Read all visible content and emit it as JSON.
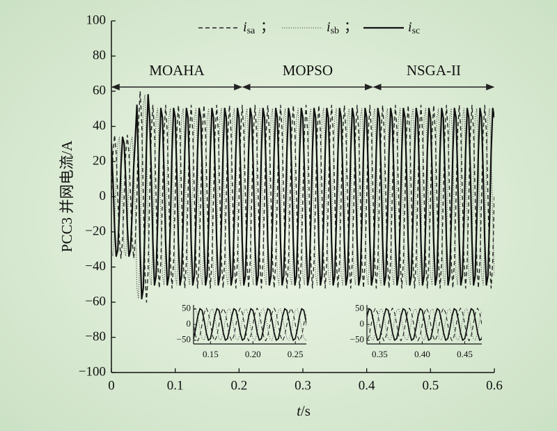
{
  "chart_data": [
    {
      "type": "line",
      "xlabel": "t/s",
      "ylabel": "PCC3 并网电流/A",
      "xlim": [
        0,
        0.6
      ],
      "xticks": [
        0,
        0.1,
        0.2,
        0.3,
        0.4,
        0.5,
        0.6
      ],
      "ylim": [
        -100,
        100
      ],
      "yticks": [
        {
          "value": -100,
          "label": "−100"
        },
        {
          "value": -80,
          "label": "−80"
        },
        {
          "value": -60,
          "label": "−60"
        },
        {
          "value": -40,
          "label": "−40"
        },
        {
          "value": -20,
          "label": "−20"
        },
        0,
        20,
        40,
        60,
        80,
        100
      ],
      "legend_separator": "；",
      "annotations": [
        {
          "label": "MOAHA",
          "start": 0,
          "end": 0.205
        },
        {
          "label": "MOPSO",
          "start": 0.205,
          "end": 0.41
        },
        {
          "label": "NSGA-II",
          "start": 0.41,
          "end": 0.6
        }
      ],
      "x": [
        0,
        0.0025,
        0.005,
        0.0075,
        0.01,
        0.0125,
        0.015,
        0.0175,
        0.02,
        0.0225,
        0.025,
        0.0275,
        0.03,
        0.0325,
        0.035,
        0.0375,
        0.04,
        0.0425,
        0.045,
        0.0475,
        0.05,
        0.0525,
        0.055,
        0.0575,
        0.06,
        0.0625,
        0.065,
        0.0675,
        0.07,
        0.0725,
        0.075,
        0.0775,
        0.08,
        0.0825,
        0.085,
        0.0875,
        0.09,
        0.0925,
        0.095,
        0.0975,
        0.1,
        0.1025,
        0.105,
        0.1075,
        0.11,
        0.1125,
        0.115,
        0.1175,
        0.12,
        0.1225,
        0.125,
        0.1275,
        0.13,
        0.1325,
        0.135,
        0.1375,
        0.14,
        0.1425,
        0.145,
        0.1475,
        0.15,
        0.1525,
        0.155,
        0.1575,
        0.16,
        0.1625,
        0.165,
        0.1675,
        0.17,
        0.1725,
        0.175,
        0.1775,
        0.18,
        0.1825,
        0.185,
        0.1875,
        0.19,
        0.1925,
        0.195,
        0.1975,
        0.2,
        0.2025,
        0.205,
        0.2075,
        0.21,
        0.2125,
        0.215,
        0.2175,
        0.22,
        0.2225,
        0.225,
        0.2275,
        0.23,
        0.2325,
        0.235,
        0.2375,
        0.24,
        0.2425,
        0.245,
        0.2475,
        0.25,
        0.2525,
        0.255,
        0.2575,
        0.26,
        0.2625,
        0.265,
        0.2675,
        0.27,
        0.2725,
        0.275,
        0.2775,
        0.28,
        0.2825,
        0.285,
        0.2875,
        0.29,
        0.2925,
        0.295,
        0.2975,
        0.3,
        0.3025,
        0.305,
        0.3075,
        0.31,
        0.3125,
        0.315,
        0.3175,
        0.32,
        0.3225,
        0.325,
        0.3275,
        0.33,
        0.3325,
        0.335,
        0.3375,
        0.34,
        0.3425,
        0.345,
        0.3475,
        0.35,
        0.3525,
        0.355,
        0.3575,
        0.36,
        0.3625,
        0.365,
        0.3675,
        0.37,
        0.3725,
        0.375,
        0.3775,
        0.38,
        0.3825,
        0.385,
        0.3875,
        0.39,
        0.3925,
        0.395,
        0.3975,
        0.4,
        0.4025,
        0.405,
        0.4075,
        0.41,
        0.4125,
        0.415,
        0.4175,
        0.42,
        0.4225,
        0.425,
        0.4275,
        0.43,
        0.4325,
        0.435,
        0.4375,
        0.44,
        0.4425,
        0.445,
        0.4475,
        0.45,
        0.4525,
        0.455,
        0.4575,
        0.46,
        0.4625,
        0.465,
        0.4675,
        0.47,
        0.4725,
        0.475,
        0.4775,
        0.48,
        0.4825,
        0.485,
        0.4875,
        0.49,
        0.4925,
        0.495,
        0.4975,
        0.5,
        0.5025,
        0.505,
        0.5075,
        0.51,
        0.5125,
        0.515,
        0.5175,
        0.52,
        0.5225,
        0.525,
        0.5275,
        0.53,
        0.5325,
        0.535,
        0.5375,
        0.54,
        0.5425,
        0.545,
        0.5475,
        0.55,
        0.5525,
        0.555,
        0.5575,
        0.56,
        0.5625,
        0.565,
        0.5675,
        0.57,
        0.5725,
        0.575,
        0.5775,
        0.58,
        0.5825,
        0.585,
        0.5875,
        0.59,
        0.5925,
        0.595,
        0.5975,
        0.6
      ],
      "series": [
        {
          "name": "isa",
          "color": "#222222",
          "line_style": "dashed",
          "values": [
            0,
            24.7,
            35,
            24.7,
            0,
            -24.7,
            -35,
            -24.7,
            0,
            24.7,
            35,
            24.7,
            0,
            -24.7,
            -35,
            -24.7,
            0,
            42.4,
            60,
            42.4,
            0,
            -42.4,
            -60,
            -42.4,
            0,
            36.8,
            52,
            36.8,
            0,
            -36.8,
            -52,
            -36.8,
            0,
            36.8,
            52,
            36.8,
            0,
            -36.8,
            -52,
            -36.8,
            0,
            36.8,
            52,
            36.8,
            0,
            -36.8,
            -52,
            -36.8,
            0,
            36.8,
            52,
            36.8,
            0,
            -36.8,
            -52,
            -36.8,
            0,
            36.8,
            52,
            36.8,
            0,
            -36.8,
            -52,
            -36.8,
            0,
            36.8,
            52,
            36.8,
            0,
            -36.8,
            -52,
            -36.8,
            0,
            36.8,
            52,
            36.8,
            0,
            -36.8,
            -52,
            -36.8,
            0,
            36.8,
            52,
            36.8,
            0,
            -36.8,
            -52,
            -36.8,
            0,
            36.8,
            52,
            36.8,
            0,
            -36.8,
            -52,
            -36.8,
            0,
            36.8,
            52,
            36.8,
            0,
            -36.8,
            -52,
            -36.8,
            0,
            36.8,
            52,
            36.8,
            0,
            -36.8,
            -52,
            -36.8,
            0,
            36.8,
            52,
            36.8,
            0,
            -36.8,
            -52,
            -36.8,
            0,
            36.8,
            52,
            36.8,
            0,
            -36.8,
            -52,
            -36.8,
            0,
            36.8,
            52,
            36.8,
            0,
            -36.8,
            -52,
            -36.8,
            0,
            36.8,
            52,
            36.8,
            0,
            -36.8,
            -52,
            -36.8,
            0,
            36.8,
            52,
            36.8,
            0,
            -36.8,
            -52,
            -36.8,
            0,
            36.8,
            52,
            36.8,
            0,
            -36.8,
            -52,
            -36.8,
            0,
            36.8,
            52,
            36.8,
            0,
            -36.8,
            -52,
            -36.8,
            0,
            36.8,
            52,
            36.8,
            0,
            -36.8,
            -52,
            -36.8,
            0,
            36.8,
            52,
            36.8,
            0,
            -36.8,
            -52,
            -36.8,
            0,
            36.8,
            52,
            36.8,
            0,
            -36.8,
            -52,
            -36.8,
            0,
            36.8,
            52,
            36.8,
            0,
            -36.8,
            -52,
            -36.8,
            0,
            36.8,
            52,
            36.8,
            0,
            -36.8,
            -52,
            -36.8,
            0,
            36.8,
            52,
            36.8,
            0,
            -36.8,
            -52,
            -36.8,
            0,
            36.8,
            52,
            36.8,
            0,
            -36.8,
            -52,
            -36.8,
            0,
            36.8,
            52,
            36.8,
            0,
            -36.8,
            -52,
            -36.8,
            0,
            36.8,
            52,
            36.8,
            0,
            -36.8,
            -52,
            -36.8,
            0
          ]
        },
        {
          "name": "isb",
          "color": "#444444",
          "line_style": "dotted",
          "values": [
            -30.3,
            -33.8,
            -17.5,
            9.1,
            30.3,
            33.8,
            17.5,
            -9.1,
            -30.3,
            -33.8,
            -17.5,
            9.1,
            30.3,
            33.8,
            17.5,
            -9.1,
            -52,
            -58,
            -30,
            15.5,
            52,
            58,
            30,
            -15.5,
            -45,
            -50.2,
            -26,
            13.5,
            45,
            50.2,
            26,
            -13.5,
            -45,
            -50.2,
            -26,
            13.5,
            45,
            50.2,
            26,
            -13.5,
            -45,
            -50.2,
            -26,
            13.5,
            45,
            50.2,
            26,
            -13.5,
            -45,
            -50.2,
            -26,
            13.5,
            45,
            50.2,
            26,
            -13.5,
            -45,
            -50.2,
            -26,
            13.5,
            45,
            50.2,
            26,
            -13.5,
            -45,
            -50.2,
            -26,
            13.5,
            45,
            50.2,
            26,
            -13.5,
            -45,
            -50.2,
            -26,
            13.5,
            45,
            50.2,
            26,
            -13.5,
            -45,
            -50.2,
            -26,
            13.5,
            45,
            50.2,
            26,
            -13.5,
            -45,
            -50.2,
            -26,
            13.5,
            45,
            50.2,
            26,
            -13.5,
            -45,
            -50.2,
            -26,
            13.5,
            45,
            50.2,
            26,
            -13.5,
            -45,
            -50.2,
            -26,
            13.5,
            45,
            50.2,
            26,
            -13.5,
            -45,
            -50.2,
            -26,
            13.5,
            45,
            50.2,
            26,
            -13.5,
            -45,
            -50.2,
            -26,
            13.5,
            45,
            50.2,
            26,
            -13.5,
            -45,
            -50.2,
            -26,
            13.5,
            45,
            50.2,
            26,
            -13.5,
            -45,
            -50.2,
            -26,
            13.5,
            45,
            50.2,
            26,
            -13.5,
            -45,
            -50.2,
            -26,
            13.5,
            45,
            50.2,
            26,
            -13.5,
            -45,
            -50.2,
            -26,
            13.5,
            45,
            50.2,
            26,
            -13.5,
            -45,
            -50.2,
            -26,
            13.5,
            45,
            50.2,
            26,
            -13.5,
            -45,
            -50.2,
            -26,
            13.5,
            45,
            50.2,
            26,
            -13.5,
            -45,
            -50.2,
            -26,
            13.5,
            45,
            50.2,
            26,
            -13.5,
            -45,
            -50.2,
            -26,
            13.5,
            45,
            50.2,
            26,
            -13.5,
            -45,
            -50.2,
            -26,
            13.5,
            45,
            50.2,
            26,
            -13.5,
            -45,
            -50.2,
            -26,
            13.5,
            45,
            50.2,
            26,
            -13.5,
            -45,
            -50.2,
            -26,
            13.5,
            45,
            50.2,
            26,
            -13.5,
            -45,
            -50.2,
            -26,
            13.5,
            45,
            50.2,
            26,
            -13.5,
            -45,
            -50.2,
            -26,
            13.5,
            45,
            50.2,
            26,
            -13.5,
            -45,
            -50.2,
            -26,
            13.5,
            45,
            50.2,
            26,
            -13.5,
            -45
          ]
        },
        {
          "name": "isc",
          "color": "#111111",
          "line_style": "solid",
          "values": [
            30.3,
            9.1,
            -17.5,
            -33.8,
            -30.3,
            -9.1,
            17.5,
            33.8,
            30.3,
            9.1,
            -17.5,
            -33.8,
            -30.3,
            -9.1,
            17.5,
            33.8,
            52,
            15.5,
            -30,
            -58,
            -52,
            -15.5,
            30,
            58,
            45,
            13.5,
            -26,
            -50.2,
            -45,
            -13.5,
            26,
            50.2,
            45,
            13.5,
            -26,
            -50.2,
            -45,
            -13.5,
            26,
            50.2,
            45,
            13.5,
            -26,
            -50.2,
            -45,
            -13.5,
            26,
            50.2,
            45,
            13.5,
            -26,
            -50.2,
            -45,
            -13.5,
            26,
            50.2,
            45,
            13.5,
            -26,
            -50.2,
            -45,
            -13.5,
            26,
            50.2,
            45,
            13.5,
            -26,
            -50.2,
            -45,
            -13.5,
            26,
            50.2,
            45,
            13.5,
            -26,
            -50.2,
            -45,
            -13.5,
            26,
            50.2,
            45,
            13.5,
            -26,
            -50.2,
            -45,
            -13.5,
            26,
            50.2,
            45,
            13.5,
            -26,
            -50.2,
            -45,
            -13.5,
            26,
            50.2,
            45,
            13.5,
            -26,
            -50.2,
            -45,
            -13.5,
            26,
            50.2,
            45,
            13.5,
            -26,
            -50.2,
            -45,
            -13.5,
            26,
            50.2,
            45,
            13.5,
            -26,
            -50.2,
            -45,
            -13.5,
            26,
            50.2,
            45,
            13.5,
            -26,
            -50.2,
            -45,
            -13.5,
            26,
            50.2,
            45,
            13.5,
            -26,
            -50.2,
            -45,
            -13.5,
            26,
            50.2,
            45,
            13.5,
            -26,
            -50.2,
            -45,
            -13.5,
            26,
            50.2,
            45,
            13.5,
            -26,
            -50.2,
            -45,
            -13.5,
            26,
            50.2,
            45,
            13.5,
            -26,
            -50.2,
            -45,
            -13.5,
            26,
            50.2,
            45,
            13.5,
            -26,
            -50.2,
            -45,
            -13.5,
            26,
            50.2,
            45,
            13.5,
            -26,
            -50.2,
            -45,
            -13.5,
            26,
            50.2,
            45,
            13.5,
            -26,
            -50.2,
            -45,
            -13.5,
            26,
            50.2,
            45,
            13.5,
            -26,
            -50.2,
            -45,
            -13.5,
            26,
            50.2,
            45,
            13.5,
            -26,
            -50.2,
            -45,
            -13.5,
            26,
            50.2,
            45,
            13.5,
            -26,
            -50.2,
            -45,
            -13.5,
            26,
            50.2,
            45,
            13.5,
            -26,
            -50.2,
            -45,
            -13.5,
            26,
            50.2,
            45,
            13.5,
            -26,
            -50.2,
            -45,
            -13.5,
            26,
            50.2,
            45,
            13.5,
            -26,
            -50.2,
            -45,
            -13.5,
            26,
            50.2,
            45,
            13.5,
            -26,
            -50.2,
            -45,
            -13.5,
            26,
            50.2,
            45
          ]
        }
      ]
    },
    {
      "type": "inset",
      "xlim": [
        0.13,
        0.263
      ],
      "ylim": [
        -62,
        62
      ],
      "xticks": [
        0.15,
        {
          "value": 0.2,
          "label": "0.20"
        },
        0.25
      ],
      "yticks": [
        {
          "value": -50,
          "label": "−50"
        },
        0,
        50
      ]
    },
    {
      "type": "inset",
      "xlim": [
        0.335,
        0.47
      ],
      "ylim": [
        -62,
        62
      ],
      "xticks": [
        0.35,
        {
          "value": 0.4,
          "label": "0.40"
        },
        0.45
      ],
      "yticks": [
        {
          "value": -50,
          "label": "−50"
        },
        0,
        50
      ]
    }
  ]
}
